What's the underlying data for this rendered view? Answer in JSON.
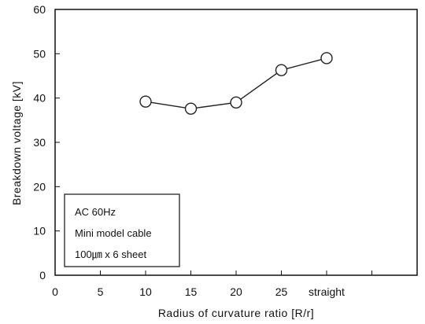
{
  "chart_data": {
    "type": "line",
    "x_ticks": [
      "0",
      "5",
      "10",
      "15",
      "20",
      "25",
      "straight"
    ],
    "y_ticks": [
      "0",
      "10",
      "20",
      "30",
      "40",
      "50",
      "60"
    ],
    "xlabel": "Radius of curvature ratio [R/r]",
    "ylabel": "Breakdown voltage [kV]",
    "ylim": [
      0,
      60
    ],
    "xlim": [
      0,
      40
    ],
    "grid": false,
    "series": [
      {
        "points": [
          {
            "x": "10",
            "y": 39.2
          },
          {
            "x": "15",
            "y": 37.6
          },
          {
            "x": "20",
            "y": 39.0
          },
          {
            "x": "25",
            "y": 46.3
          },
          {
            "x": "straight",
            "y": 49.0
          }
        ],
        "marker": "open-circle",
        "color": "#222222"
      }
    ],
    "annotation_box": {
      "lines": [
        "AC 60Hz",
        "Mini model cable",
        "100㎛ x 6 sheet"
      ]
    }
  }
}
